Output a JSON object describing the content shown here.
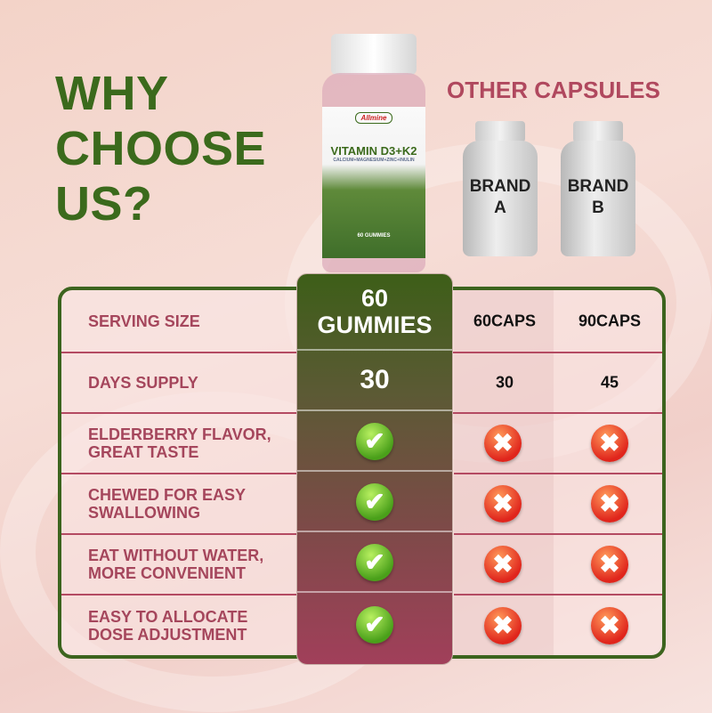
{
  "headline": {
    "line1": "WHY",
    "line2": "CHOOSE",
    "line3": "US?"
  },
  "other_title": "OTHER CAPSULES",
  "product": {
    "brand": "Allmine",
    "name": "VITAMIN D3+K2",
    "subtitle": "CALCIUM+MAGNESIUM+ZINC+INULIN",
    "count": "60 GUMMIES"
  },
  "brands": [
    {
      "line1": "BRAND",
      "line2": "A"
    },
    {
      "line1": "BRAND",
      "line2": "B"
    }
  ],
  "columns": {
    "ours": "60 GUMMIES",
    "brand_a": "60CAPS",
    "brand_b": "90CAPS"
  },
  "header_row": {
    "label": "SERVING SIZE",
    "ours_line1": "60",
    "ours_line2": "GUMMIES",
    "brand_a": "60CAPS",
    "brand_b": "90CAPS"
  },
  "rows": [
    {
      "label": "DAYS SUPPLY",
      "ours": "30",
      "brand_a": "30",
      "brand_b": "45"
    },
    {
      "label": "ELDERBERRY FLAVOR, GREAT TASTE",
      "ours": "✔",
      "brand_a": "✖",
      "brand_b": "✖"
    },
    {
      "label": "CHEWED FOR EASY SWALLOWING",
      "ours": "✔",
      "brand_a": "✖",
      "brand_b": "✖"
    },
    {
      "label": "EAT WITHOUT WATER, MORE CONVENIENT",
      "ours": "✔",
      "brand_a": "✖",
      "brand_b": "✖"
    },
    {
      "label": "EASY TO ALLOCATE DOSE ADJUSTMENT",
      "ours": "✔",
      "brand_a": "✖",
      "brand_b": "✖"
    }
  ],
  "colors": {
    "green": "#3b6a1c",
    "berry": "#a5465c",
    "check": "#4aa01a",
    "cross": "#e0251c"
  }
}
